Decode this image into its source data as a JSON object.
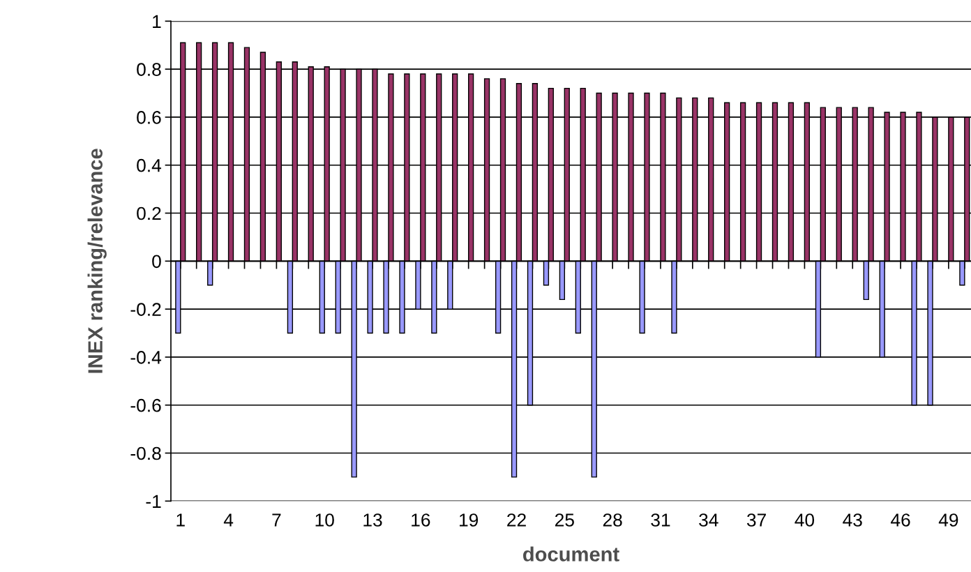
{
  "chart_data": {
    "type": "bar",
    "xlabel": "document",
    "ylabel": "INEX ranking/relevance",
    "categories": [
      "1",
      null,
      null,
      "4",
      null,
      null,
      "7",
      null,
      null,
      "10",
      null,
      null,
      "13",
      null,
      null,
      "16",
      null,
      null,
      "19",
      null,
      null,
      "22",
      null,
      null,
      "25",
      null,
      null,
      "28",
      null,
      null,
      "31",
      null,
      null,
      "34",
      null,
      null,
      "37",
      null,
      null,
      "40",
      null,
      null,
      "43",
      null,
      null,
      "46",
      null,
      null,
      "49",
      null
    ],
    "series": [
      {
        "color": "#9999ff",
        "values": [
          -0.3,
          null,
          -0.1,
          null,
          null,
          null,
          null,
          -0.3,
          null,
          -0.3,
          -0.3,
          -0.9,
          -0.3,
          -0.3,
          -0.3,
          -0.2,
          -0.3,
          -0.2,
          null,
          null,
          -0.3,
          -0.9,
          -0.6,
          -0.1,
          -0.16,
          -0.3,
          -0.9,
          null,
          null,
          -0.3,
          null,
          -0.3,
          null,
          null,
          null,
          null,
          null,
          null,
          null,
          null,
          -0.4,
          null,
          null,
          -0.16,
          -0.4,
          null,
          -0.6,
          -0.6,
          null,
          -0.1
        ]
      },
      {
        "color": "#993366",
        "values": [
          0.91,
          0.91,
          0.91,
          0.91,
          0.89,
          0.87,
          0.83,
          0.83,
          0.81,
          0.81,
          0.8,
          0.8,
          0.8,
          0.78,
          0.78,
          0.78,
          0.78,
          0.78,
          0.78,
          0.76,
          0.76,
          0.74,
          0.74,
          0.72,
          0.72,
          0.72,
          0.7,
          0.7,
          0.7,
          0.7,
          0.7,
          0.68,
          0.68,
          0.68,
          0.66,
          0.66,
          0.66,
          0.66,
          0.66,
          0.66,
          0.64,
          0.64,
          0.64,
          0.64,
          0.62,
          0.62,
          0.62,
          0.6,
          0.6,
          0.6
        ]
      }
    ],
    "ylim": [
      -1,
      1
    ],
    "yticks": [
      -1,
      -0.8,
      -0.6,
      -0.4,
      -0.2,
      0,
      0.2,
      0.4,
      0.6,
      0.8,
      1
    ],
    "grid": "y",
    "legend": false
  }
}
